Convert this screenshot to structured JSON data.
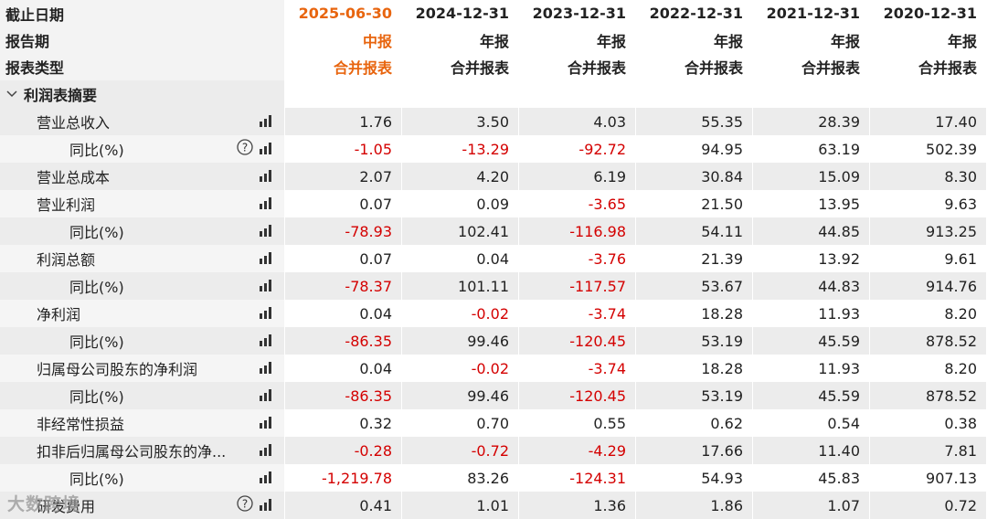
{
  "header": {
    "labels": [
      "截止日期",
      "报告期",
      "报表类型"
    ],
    "columns": [
      {
        "date": "2025-06-30",
        "period": "中报",
        "type": "合并报表"
      },
      {
        "date": "2024-12-31",
        "period": "年报",
        "type": "合并报表"
      },
      {
        "date": "2023-12-31",
        "period": "年报",
        "type": "合并报表"
      },
      {
        "date": "2022-12-31",
        "period": "年报",
        "type": "合并报表"
      },
      {
        "date": "2021-12-31",
        "period": "年报",
        "type": "合并报表"
      },
      {
        "date": "2020-12-31",
        "period": "年报",
        "type": "合并报表"
      }
    ]
  },
  "section": "利润表摘要",
  "rows": [
    {
      "label": "营业总收入",
      "level": 1,
      "help": false,
      "values": [
        "1.76",
        "3.50",
        "4.03",
        "55.35",
        "28.39",
        "17.40"
      ]
    },
    {
      "label": "同比(%)",
      "level": 2,
      "help": true,
      "values": [
        "-1.05",
        "-13.29",
        "-92.72",
        "94.95",
        "63.19",
        "502.39"
      ]
    },
    {
      "label": "营业总成本",
      "level": 1,
      "help": false,
      "values": [
        "2.07",
        "4.20",
        "6.19",
        "30.84",
        "15.09",
        "8.30"
      ]
    },
    {
      "label": "营业利润",
      "level": 1,
      "help": false,
      "values": [
        "0.07",
        "0.09",
        "-3.65",
        "21.50",
        "13.95",
        "9.63"
      ]
    },
    {
      "label": "同比(%)",
      "level": 2,
      "help": false,
      "values": [
        "-78.93",
        "102.41",
        "-116.98",
        "54.11",
        "44.85",
        "913.25"
      ]
    },
    {
      "label": "利润总额",
      "level": 1,
      "help": false,
      "values": [
        "0.07",
        "0.04",
        "-3.76",
        "21.39",
        "13.92",
        "9.61"
      ]
    },
    {
      "label": "同比(%)",
      "level": 2,
      "help": false,
      "values": [
        "-78.37",
        "101.11",
        "-117.57",
        "53.67",
        "44.83",
        "914.76"
      ]
    },
    {
      "label": "净利润",
      "level": 1,
      "help": false,
      "values": [
        "0.04",
        "-0.02",
        "-3.74",
        "18.28",
        "11.93",
        "8.20"
      ]
    },
    {
      "label": "同比(%)",
      "level": 2,
      "help": false,
      "values": [
        "-86.35",
        "99.46",
        "-120.45",
        "53.19",
        "45.59",
        "878.52"
      ]
    },
    {
      "label": "归属母公司股东的净利润",
      "level": 1,
      "help": false,
      "values": [
        "0.04",
        "-0.02",
        "-3.74",
        "18.28",
        "11.93",
        "8.20"
      ]
    },
    {
      "label": "同比(%)",
      "level": 2,
      "help": false,
      "values": [
        "-86.35",
        "99.46",
        "-120.45",
        "53.19",
        "45.59",
        "878.52"
      ]
    },
    {
      "label": "非经常性损益",
      "level": 1,
      "help": false,
      "values": [
        "0.32",
        "0.70",
        "0.55",
        "0.62",
        "0.54",
        "0.38"
      ]
    },
    {
      "label": "扣非后归属母公司股东的净...",
      "level": 1,
      "help": false,
      "values": [
        "-0.28",
        "-0.72",
        "-4.29",
        "17.66",
        "11.40",
        "7.81"
      ]
    },
    {
      "label": "同比(%)",
      "level": 2,
      "help": false,
      "values": [
        "-1,219.78",
        "83.26",
        "-124.31",
        "54.93",
        "45.83",
        "907.13"
      ]
    },
    {
      "label": "研发费用",
      "level": 1,
      "help": true,
      "values": [
        "0.41",
        "1.01",
        "1.36",
        "1.86",
        "1.07",
        "0.72"
      ]
    }
  ],
  "watermark": "大数跨境"
}
